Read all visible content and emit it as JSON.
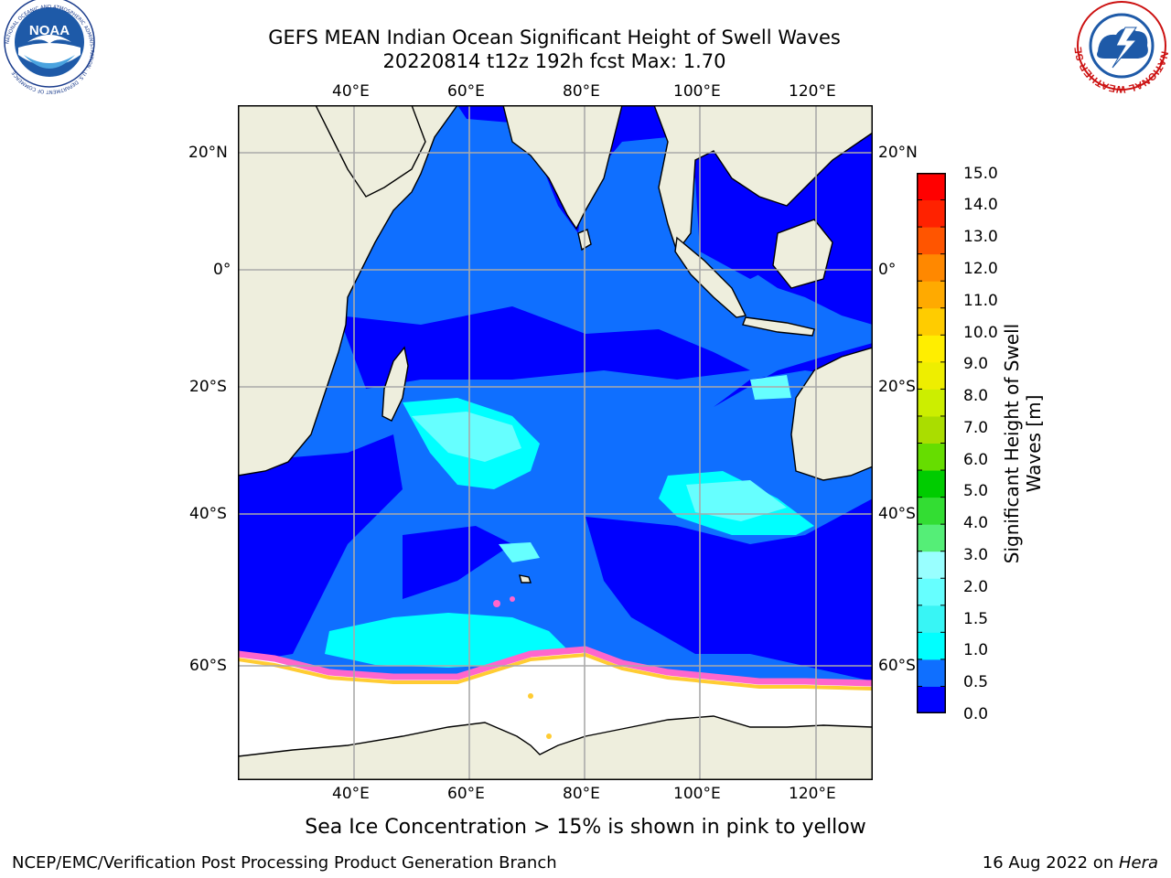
{
  "header": {
    "title_line1": "GEFS MEAN Indian Ocean Significant Height of Swell Waves",
    "title_line2": "20220814 t12z 192h fcst   Max: 1.70"
  },
  "map": {
    "lon_labels": [
      "40°E",
      "60°E",
      "80°E",
      "100°E",
      "120°E"
    ],
    "lat_labels": [
      "20°N",
      "0°",
      "20°S",
      "40°S",
      "60°S"
    ],
    "colors": {
      "land": "#eeeedd",
      "ice": "#ffffff",
      "sea_0_05": "#0000ff",
      "sea_05_1": "#0f6fff",
      "sea_1_15": "#00ffff",
      "sea_15_2": "#38f5f5",
      "grid": "#aaaaaa",
      "ice_pink": "#ff66cc",
      "ice_yellow": "#ffcc33"
    }
  },
  "colorbar": {
    "tick_labels": [
      "15.0",
      "14.0",
      "13.0",
      "12.0",
      "11.0",
      "10.0",
      "9.0",
      "8.0",
      "7.0",
      "6.0",
      "5.0",
      "4.0",
      "3.0",
      "2.0",
      "1.5",
      "1.0",
      "0.5",
      "0.0"
    ],
    "colors_bottom_to_top": [
      "#0000ff",
      "#0f6fff",
      "#00ffff",
      "#38f5f5",
      "#66ffff",
      "#99ffff",
      "#55ee77",
      "#33dd33",
      "#00cc00",
      "#66dd00",
      "#aadd00",
      "#ccee00",
      "#eeee00",
      "#ffee00",
      "#ffcc00",
      "#ffaa00",
      "#ff8800",
      "#ff5500",
      "#ff2200",
      "#ff0000"
    ],
    "label_line1": "Significant Height of Swell",
    "label_line2": "Waves [m]"
  },
  "caption": "Sea Ice Concentration > 15% is shown in pink to yellow",
  "footer": {
    "left": "NCEP/EMC/Verification Post Processing Product Generation Branch",
    "right_prefix": "16 Aug 2022 on ",
    "right_host": "Hera"
  },
  "logos": {
    "left_text": "NOAA",
    "left_ring_text": "NATIONAL OCEANIC AND ATMOSPHERIC ADMINISTRATION · U.S. DEPARTMENT OF COMMERCE",
    "right_ring_text": "NATIONAL WEATHER SERVICE"
  }
}
